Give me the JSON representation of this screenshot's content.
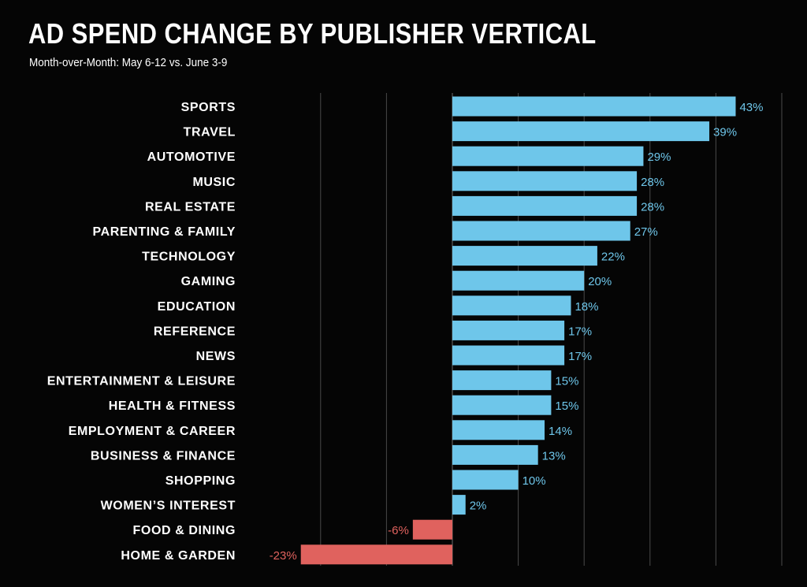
{
  "header": {
    "title": "AD SPEND CHANGE BY PUBLISHER VERTICAL",
    "subtitle": "Month-over-Month: May 6-12 vs. June 3-9"
  },
  "colors": {
    "background": "#050505",
    "positive_bar": "#6ec6ea",
    "negative_bar": "#e0625e",
    "positive_label": "#6ec6ea",
    "negative_label": "#e0625e",
    "gridline": "#4a4a4a",
    "category_text": "#ffffff"
  },
  "chart_data": {
    "type": "bar",
    "orientation": "horizontal",
    "title": "AD SPEND CHANGE BY PUBLISHER VERTICAL",
    "subtitle": "Month-over-Month: May 6-12 vs. June 3-9",
    "categories": [
      "SPORTS",
      "TRAVEL",
      "AUTOMOTIVE",
      "MUSIC",
      "REAL ESTATE",
      "PARENTING & FAMILY",
      "TECHNOLOGY",
      "GAMING",
      "EDUCATION",
      "REFERENCE",
      "NEWS",
      "ENTERTAINMENT & LEISURE",
      "HEALTH & FITNESS",
      "EMPLOYMENT & CAREER",
      "BUSINESS & FINANCE",
      "SHOPPING",
      "WOMEN’S INTEREST",
      "FOOD & DINING",
      "HOME & GARDEN"
    ],
    "values": [
      43,
      39,
      29,
      28,
      28,
      27,
      22,
      20,
      18,
      17,
      17,
      15,
      15,
      14,
      13,
      10,
      2,
      -6,
      -23
    ],
    "value_labels": [
      "43%",
      "39%",
      "29%",
      "28%",
      "28%",
      "27%",
      "22%",
      "20%",
      "18%",
      "17%",
      "17%",
      "15%",
      "15%",
      "14%",
      "13%",
      "10%",
      "2%",
      "-6%",
      "-23%"
    ],
    "unit": "%",
    "xlim": [
      -30,
      50
    ],
    "gridlines_at": [
      -20,
      -10,
      0,
      10,
      20,
      30,
      40,
      50
    ],
    "grid": true,
    "legend": "none",
    "xlabel": "",
    "ylabel": ""
  }
}
